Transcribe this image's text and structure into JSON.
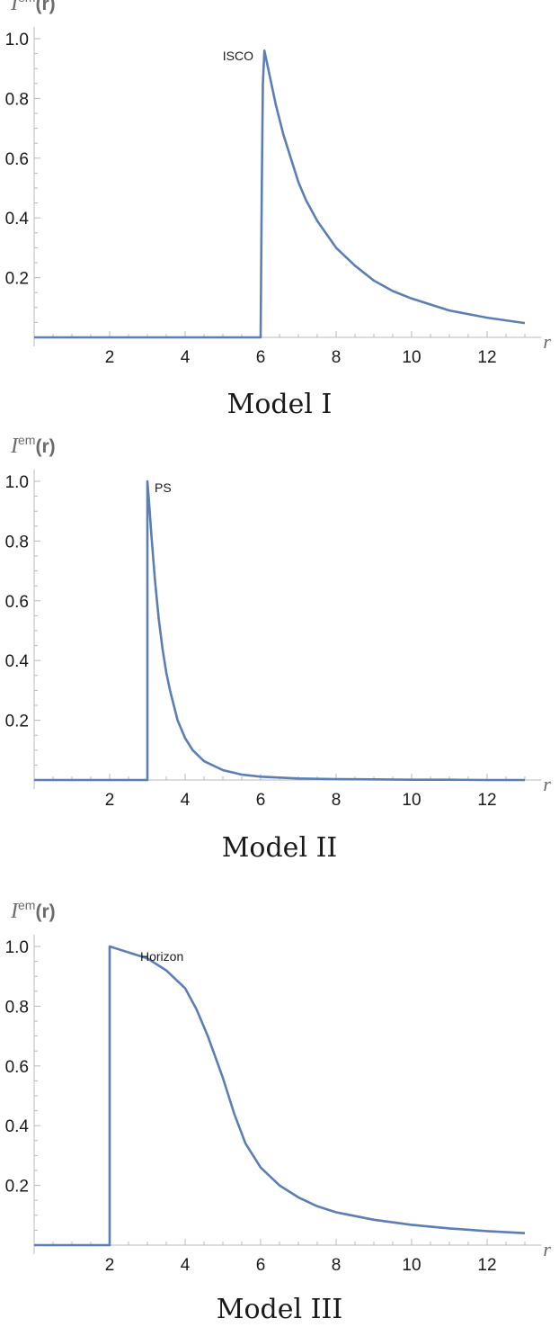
{
  "chart_data": [
    {
      "type": "line",
      "caption": "Model I",
      "ylabel_main": "I",
      "ylabel_sup": "em",
      "ylabel_arg": "(r)",
      "xlabel": "r",
      "xlim": [
        0,
        13.2
      ],
      "ylim": [
        0,
        1.0
      ],
      "xticks": [
        2,
        4,
        6,
        8,
        10,
        12
      ],
      "xtick_labels": [
        "2",
        "4",
        "6",
        "8",
        "10",
        "12"
      ],
      "yticks": [
        0.2,
        0.4,
        0.6,
        0.8,
        1.0
      ],
      "ytick_labels": [
        "0.2",
        "0.4",
        "0.6",
        "0.8",
        "1.0"
      ],
      "annotation": {
        "text": "ISCO",
        "x": 6
      },
      "series": [
        {
          "color": "#5b7fb5",
          "x": [
            0,
            5.98,
            6.0,
            6.03,
            6.06,
            6.1,
            6.2,
            6.4,
            6.6,
            6.8,
            7.0,
            7.2,
            7.5,
            8.0,
            8.5,
            9.0,
            9.5,
            10.0,
            10.5,
            11.0,
            11.5,
            12.0,
            12.5,
            13.0
          ],
          "y": [
            0,
            0,
            0,
            0.5,
            0.85,
            0.96,
            0.9,
            0.78,
            0.68,
            0.6,
            0.52,
            0.46,
            0.39,
            0.3,
            0.24,
            0.19,
            0.155,
            0.13,
            0.11,
            0.09,
            0.078,
            0.066,
            0.057,
            0.048
          ]
        }
      ]
    },
    {
      "type": "line",
      "caption": "Model II",
      "ylabel_main": "I",
      "ylabel_sup": "em",
      "ylabel_arg": "(r)",
      "xlabel": "r",
      "xlim": [
        0,
        13.2
      ],
      "ylim": [
        0,
        1.0
      ],
      "xticks": [
        2,
        4,
        6,
        8,
        10,
        12
      ],
      "xtick_labels": [
        "2",
        "4",
        "6",
        "8",
        "10",
        "12"
      ],
      "yticks": [
        0.2,
        0.4,
        0.6,
        0.8,
        1.0
      ],
      "ytick_labels": [
        "0.2",
        "0.4",
        "0.6",
        "0.8",
        "1.0"
      ],
      "annotation": {
        "text": "PS",
        "x": 3
      },
      "series": [
        {
          "color": "#5b7fb5",
          "x": [
            0,
            3.0,
            3.0,
            3.05,
            3.1,
            3.2,
            3.3,
            3.4,
            3.5,
            3.6,
            3.7,
            3.8,
            4.0,
            4.2,
            4.5,
            5.0,
            5.5,
            6.0,
            7.0,
            8.0,
            9.0,
            10.0,
            11.0,
            12.0,
            13.0
          ],
          "y": [
            0,
            0,
            1.0,
            0.92,
            0.83,
            0.67,
            0.54,
            0.44,
            0.36,
            0.3,
            0.25,
            0.2,
            0.14,
            0.1,
            0.063,
            0.033,
            0.018,
            0.011,
            0.005,
            0.003,
            0.002,
            0.001,
            0.001,
            0.0,
            0.0
          ]
        }
      ]
    },
    {
      "type": "line",
      "caption": "Model III",
      "ylabel_main": "I",
      "ylabel_sup": "em",
      "ylabel_arg": "(r)",
      "xlabel": "r",
      "xlim": [
        0,
        13.2
      ],
      "ylim": [
        0,
        1.0
      ],
      "xticks": [
        2,
        4,
        6,
        8,
        10,
        12
      ],
      "xtick_labels": [
        "2",
        "4",
        "6",
        "8",
        "10",
        "12"
      ],
      "yticks": [
        0.2,
        0.4,
        0.6,
        0.8,
        1.0
      ],
      "ytick_labels": [
        "0.2",
        "0.4",
        "0.6",
        "0.8",
        "1.0"
      ],
      "annotation": {
        "text": "Horizon",
        "x": 2
      },
      "series": [
        {
          "color": "#5b7fb5",
          "x": [
            0,
            2.0,
            2.0,
            2.5,
            3.0,
            3.5,
            4.0,
            4.3,
            4.6,
            5.0,
            5.3,
            5.6,
            6.0,
            6.5,
            7.0,
            7.5,
            8.0,
            9.0,
            10.0,
            11.0,
            12.0,
            13.0
          ],
          "y": [
            0,
            0,
            1.0,
            0.98,
            0.96,
            0.92,
            0.86,
            0.79,
            0.7,
            0.56,
            0.44,
            0.34,
            0.26,
            0.2,
            0.16,
            0.13,
            0.11,
            0.085,
            0.068,
            0.056,
            0.047,
            0.04
          ]
        }
      ]
    }
  ]
}
